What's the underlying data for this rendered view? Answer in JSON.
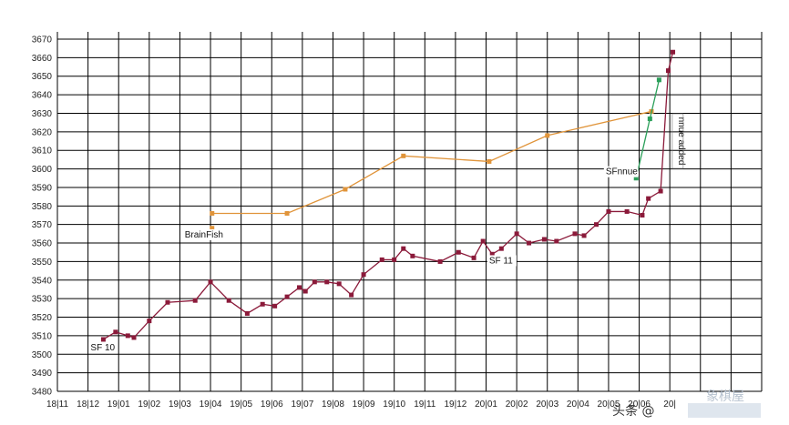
{
  "chart_data": {
    "type": "line",
    "title": "",
    "xlabel": "",
    "ylabel": "",
    "ylim": [
      3480,
      3670
    ],
    "y_ticks": [
      3480,
      3490,
      3500,
      3510,
      3520,
      3530,
      3540,
      3550,
      3560,
      3570,
      3580,
      3590,
      3600,
      3610,
      3620,
      3630,
      3640,
      3650,
      3660,
      3670
    ],
    "x_tick_labels": [
      "18|11",
      "18|12",
      "19|01",
      "19|02",
      "19|03",
      "19|04",
      "19|05",
      "19|06",
      "19|07",
      "19|08",
      "19|09",
      "19|10",
      "19|11",
      "19|12",
      "20|01",
      "20|02",
      "20|03",
      "20|04",
      "20|05",
      "20|06",
      "20|"
    ],
    "grid": true,
    "legend": "none",
    "series": [
      {
        "color": "#8b1a3a",
        "points": [
          [
            1.5,
            3508
          ],
          [
            1.9,
            3512
          ],
          [
            2.3,
            3510
          ],
          [
            2.5,
            3509
          ],
          [
            3.0,
            3518
          ],
          [
            3.6,
            3528
          ],
          [
            4.5,
            3529
          ],
          [
            5.0,
            3539
          ],
          [
            5.6,
            3529
          ],
          [
            6.2,
            3522
          ],
          [
            6.7,
            3527
          ],
          [
            7.1,
            3526
          ],
          [
            7.5,
            3531
          ],
          [
            7.9,
            3536
          ],
          [
            8.1,
            3534
          ],
          [
            8.4,
            3539
          ],
          [
            8.8,
            3539
          ],
          [
            9.2,
            3538
          ],
          [
            9.6,
            3532
          ],
          [
            10.0,
            3543
          ],
          [
            10.6,
            3551
          ],
          [
            11.0,
            3551
          ],
          [
            11.3,
            3557
          ],
          [
            11.6,
            3553
          ],
          [
            12.5,
            3550
          ],
          [
            13.1,
            3555
          ],
          [
            13.6,
            3552
          ],
          [
            13.9,
            3561
          ],
          [
            14.2,
            3554
          ],
          [
            14.5,
            3557
          ],
          [
            15.0,
            3565
          ],
          [
            15.4,
            3560
          ],
          [
            15.9,
            3562
          ],
          [
            16.3,
            3561
          ],
          [
            16.9,
            3565
          ],
          [
            17.2,
            3564
          ],
          [
            17.6,
            3570
          ],
          [
            18.0,
            3577
          ],
          [
            18.6,
            3577
          ],
          [
            19.1,
            3575
          ],
          [
            19.3,
            3584
          ],
          [
            19.7,
            3588
          ],
          [
            19.95,
            3653
          ],
          [
            20.1,
            3663
          ]
        ]
      },
      {
        "color": "#e0943a",
        "points": [
          [
            5.05,
            3568
          ]
        ]
      },
      {
        "color": "#e0943a",
        "points": [
          [
            5.05,
            3576
          ],
          [
            7.5,
            3576
          ],
          [
            9.4,
            3589
          ],
          [
            11.3,
            3607
          ],
          [
            14.1,
            3604
          ],
          [
            16.0,
            3618
          ],
          [
            19.4,
            3631
          ]
        ]
      },
      {
        "color": "#2ba05a",
        "points": [
          [
            18.9,
            3595
          ],
          [
            19.35,
            3627
          ],
          [
            19.65,
            3648
          ]
        ]
      }
    ],
    "annotations": [
      {
        "text": "SF 10",
        "x": 1.5,
        "y": 3502
      },
      {
        "text": "BrainFish",
        "x": 5.05,
        "y": 3563
      },
      {
        "text": "SF 11",
        "x": 14.1,
        "y": 3549
      },
      {
        "text": "SFnnue",
        "x": 18.8,
        "y": 3597
      },
      {
        "text": "nnue added",
        "x": 20.2,
        "y": 3615
      }
    ]
  },
  "watermark": {
    "text": "头条 @",
    "brand": "象棋屋"
  }
}
